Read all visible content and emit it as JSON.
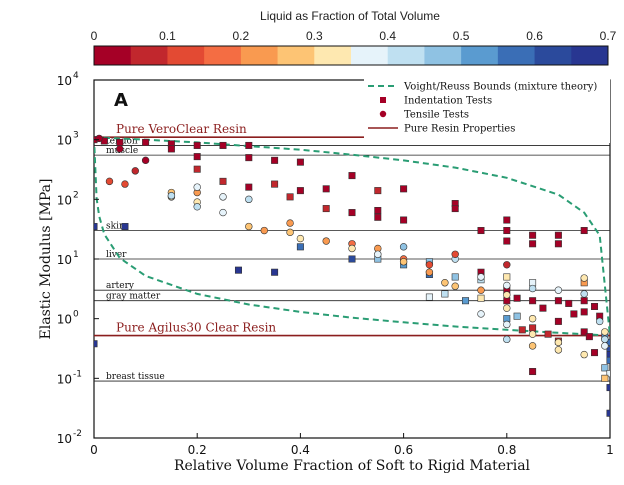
{
  "chart_data": {
    "type": "scatter",
    "panel_label": "A",
    "xlabel": "Relative Volume Fraction of Soft to Rigid Material",
    "ylabel": "Elastic Modulus [MPa]",
    "xlim": [
      0,
      1
    ],
    "ylim_log10": [
      -2,
      4
    ],
    "x_ticks": [
      "0",
      "0.2",
      "0.4",
      "0.6",
      "0.8",
      "1"
    ],
    "y_tick_bases": [
      "10",
      "10",
      "10",
      "10",
      "10",
      "10",
      "10"
    ],
    "y_tick_exps": [
      "-2",
      "-1",
      "0",
      "1",
      "2",
      "3",
      "4"
    ],
    "colorbar": {
      "title": "Liquid as Fraction of Total Volume",
      "ticks": [
        "0",
        "0.1",
        "0.2",
        "0.3",
        "0.4",
        "0.5",
        "0.6",
        "0.7"
      ],
      "colors": [
        "#a50026",
        "#c1272d",
        "#e34a33",
        "#f46d43",
        "#f99a50",
        "#fdc474",
        "#fee8b0",
        "#e6f3fa",
        "#bfe0f1",
        "#8fc2e3",
        "#5a9bd0",
        "#3a6eb6",
        "#2b4a9c",
        "#283691"
      ]
    },
    "legend": [
      {
        "label": "Voight/Reuss Bounds (mixture theory)",
        "kind": "dashed"
      },
      {
        "label": "Indentation Tests",
        "kind": "square"
      },
      {
        "label": "Tensile Tests",
        "kind": "circle"
      },
      {
        "label": "Pure Resin Properties",
        "kind": "line"
      }
    ],
    "resin_lines": [
      {
        "label": "Pure VeroClear Resin",
        "value": 1100
      },
      {
        "label": "Pure Agilus30 Clear Resin",
        "value": 0.52
      }
    ],
    "tissue_lines": [
      {
        "label": "tendon",
        "value": 800
      },
      {
        "label": "muscle",
        "value": 550
      },
      {
        "label": "skin",
        "value": 30
      },
      {
        "label": "liver",
        "value": 10
      },
      {
        "label": "artery",
        "value": 3
      },
      {
        "label": "gray matter",
        "value": 2
      },
      {
        "label": "breast tissue",
        "value": 0.09
      }
    ],
    "voigt_bound": {
      "x": [
        0,
        0.1,
        0.2,
        0.3,
        0.4,
        0.5,
        0.6,
        0.7,
        0.8,
        0.9,
        0.95,
        0.98,
        1
      ],
      "y": [
        1100,
        1000,
        900,
        780,
        680,
        560,
        450,
        340,
        230,
        120,
        60,
        25,
        0.52
      ]
    },
    "reuss_bound": {
      "x": [
        0,
        0.005,
        0.01,
        0.02,
        0.05,
        0.1,
        0.2,
        0.3,
        0.4,
        0.5,
        0.6,
        0.7,
        0.8,
        0.9,
        1
      ],
      "y": [
        1100,
        104,
        52,
        26,
        10.4,
        5.2,
        2.6,
        1.73,
        1.3,
        1.04,
        0.87,
        0.74,
        0.65,
        0.58,
        0.52
      ]
    },
    "series": [
      {
        "name": "Indentation Tests",
        "marker": "square",
        "points": [
          [
            0,
            1000,
            0
          ],
          [
            0.02,
            950,
            0
          ],
          [
            0.05,
            900,
            0
          ],
          [
            0.1,
            900,
            0.01
          ],
          [
            0.15,
            850,
            0
          ],
          [
            0.15,
            700,
            0.02
          ],
          [
            0.2,
            800,
            0
          ],
          [
            0.2,
            520,
            0.03
          ],
          [
            0.25,
            800,
            0
          ],
          [
            0.3,
            800,
            0.01
          ],
          [
            0.2,
            320,
            0.05
          ],
          [
            0.25,
            200,
            0.05
          ],
          [
            0.3,
            160,
            0.04
          ],
          [
            0.35,
            180,
            0.05
          ],
          [
            0.4,
            140,
            0.04
          ],
          [
            0.45,
            150,
            0.04
          ],
          [
            0.5,
            250,
            0.04
          ],
          [
            0.55,
            140,
            0.05
          ],
          [
            0.6,
            150,
            0.03
          ],
          [
            0.3,
            500,
            0.03
          ],
          [
            0.35,
            450,
            0.02
          ],
          [
            0.4,
            420,
            0.02
          ],
          [
            0.38,
            110,
            0.05
          ],
          [
            0.45,
            70,
            0.05
          ],
          [
            0.5,
            60,
            0.03
          ],
          [
            0.55,
            50,
            0.03
          ],
          [
            0.55,
            65,
            0.03
          ],
          [
            0.6,
            45,
            0.02
          ],
          [
            0.7,
            85,
            0.03
          ],
          [
            0.7,
            70,
            0.04
          ],
          [
            0.8,
            45,
            0.02
          ],
          [
            0.8,
            30,
            0.03
          ],
          [
            0.75,
            30,
            0.03
          ],
          [
            0.8,
            20,
            0.03
          ],
          [
            0.85,
            25,
            0.03
          ],
          [
            0.85,
            18,
            0.04
          ],
          [
            0.9,
            25,
            0.02
          ],
          [
            0.9,
            18,
            0.02
          ],
          [
            0.95,
            30,
            0.02
          ],
          [
            0.75,
            6,
            0.03
          ],
          [
            0.75,
            5,
            0.04
          ],
          [
            0.8,
            3,
            0.03
          ],
          [
            0.8,
            2,
            0.02
          ],
          [
            0.82,
            2.2,
            0.03
          ],
          [
            0.85,
            2,
            0.02
          ],
          [
            0.87,
            1.5,
            0.02
          ],
          [
            0.9,
            2,
            0.02
          ],
          [
            0.92,
            1.8,
            0.03
          ],
          [
            0.95,
            2,
            0.03
          ],
          [
            0.93,
            1.2,
            0.02
          ],
          [
            0.95,
            1.3,
            0.02
          ],
          [
            0.97,
            1.6,
            0.02
          ],
          [
            0.98,
            1.1,
            0.03
          ],
          [
            0.9,
            0.9,
            0.02
          ],
          [
            0.95,
            0.6,
            0.02
          ],
          [
            0.96,
            0.5,
            0.03
          ],
          [
            0.97,
            0.27,
            0.02
          ],
          [
            0.85,
            0.13,
            0.03
          ],
          [
            0.85,
            0.7,
            0.05
          ],
          [
            0.9,
            0.42,
            0.06
          ],
          [
            0.83,
            0.65,
            0.08
          ],
          [
            0.88,
            0.55,
            0.09
          ],
          [
            0.7,
            5,
            0.45
          ],
          [
            0.75,
            4.5,
            0.42
          ],
          [
            0.8,
            5,
            0.3
          ],
          [
            0.85,
            4,
            0.35
          ],
          [
            0.95,
            4,
            0.2
          ],
          [
            0.65,
            2.3,
            0.35
          ],
          [
            0.68,
            2.6,
            0.4
          ],
          [
            0.72,
            2,
            0.5
          ],
          [
            0.75,
            2.2,
            0.3
          ],
          [
            0.8,
            1,
            0.5
          ],
          [
            0.82,
            1.1,
            0.45
          ],
          [
            0.4,
            16,
            0.58
          ],
          [
            0.5,
            10,
            0.6
          ],
          [
            0.55,
            10,
            0.48
          ],
          [
            0.6,
            8,
            0.5
          ],
          [
            0.65,
            9,
            0.45
          ],
          [
            0.65,
            5.5,
            0.55
          ],
          [
            0.35,
            6,
            0.7
          ],
          [
            0.28,
            6.5,
            0.7
          ],
          [
            0.06,
            35,
            0.68
          ],
          [
            0,
            35,
            0.65
          ],
          [
            0,
            0.38,
            0.7
          ],
          [
            0.99,
            0.5,
            0.5
          ],
          [
            1,
            0.4,
            0.55
          ],
          [
            1,
            0.3,
            0.6
          ],
          [
            1,
            0.25,
            0.65
          ],
          [
            1,
            0.2,
            0.55
          ],
          [
            0.99,
            0.15,
            0.45
          ],
          [
            1,
            0.12,
            0.35
          ],
          [
            0.99,
            0.1,
            0.25
          ],
          [
            1,
            0.07,
            0.7
          ],
          [
            1,
            0.026,
            0.65
          ]
        ]
      },
      {
        "name": "Tensile Tests",
        "marker": "circle",
        "points": [
          [
            0.01,
            1050,
            0
          ],
          [
            0.05,
            700,
            0.03
          ],
          [
            0.08,
            300,
            0.05
          ],
          [
            0.1,
            450,
            0.02
          ],
          [
            0.03,
            200,
            0.12
          ],
          [
            0.06,
            180,
            0.14
          ],
          [
            0.15,
            130,
            0.28
          ],
          [
            0.15,
            110,
            0.33
          ],
          [
            0.2,
            130,
            0.24
          ],
          [
            0.2,
            90,
            0.3
          ],
          [
            0.25,
            60,
            0.36
          ],
          [
            0.3,
            35,
            0.28
          ],
          [
            0.33,
            30,
            0.2
          ],
          [
            0.38,
            40,
            0.22
          ],
          [
            0.38,
            28,
            0.26
          ],
          [
            0.45,
            20,
            0.2
          ],
          [
            0.5,
            18,
            0.18
          ],
          [
            0.55,
            15,
            0.22
          ],
          [
            0.6,
            10,
            0.15
          ],
          [
            0.6,
            9,
            0.25
          ],
          [
            0.65,
            6,
            0.2
          ],
          [
            0.68,
            4,
            0.25
          ],
          [
            0.7,
            3.5,
            0.28
          ],
          [
            0.75,
            3,
            0.2
          ],
          [
            0.8,
            2.5,
            0.3
          ],
          [
            0.8,
            1.5,
            0.34
          ],
          [
            0.75,
            1.2,
            0.36
          ],
          [
            0.85,
            1,
            0.3
          ],
          [
            0.8,
            0.8,
            0.38
          ],
          [
            0.85,
            0.55,
            0.32
          ],
          [
            0.8,
            0.45,
            0.4
          ],
          [
            0.85,
            0.35,
            0.28
          ],
          [
            0.9,
            0.4,
            0.3
          ],
          [
            0.9,
            0.3,
            0.34
          ],
          [
            0.95,
            0.25,
            0.32
          ],
          [
            0.2,
            160,
            0.36
          ],
          [
            0.25,
            110,
            0.38
          ],
          [
            0.3,
            100,
            0.4
          ],
          [
            0.15,
            115,
            0.42
          ],
          [
            0.2,
            75,
            0.44
          ],
          [
            0.4,
            22,
            0.34
          ],
          [
            0.5,
            15,
            0.32
          ],
          [
            0.55,
            12,
            0.36
          ],
          [
            0.6,
            16,
            0.46
          ],
          [
            0.7,
            10,
            0.4
          ],
          [
            0.75,
            5,
            0.38
          ],
          [
            0.8,
            3.6,
            0.36
          ],
          [
            0.85,
            3.2,
            0.42
          ],
          [
            0.9,
            3,
            0.38
          ],
          [
            0.95,
            2.6,
            0.4
          ],
          [
            0.7,
            12,
            0.14
          ],
          [
            0.65,
            8,
            0.1
          ],
          [
            0.8,
            8,
            0.08
          ],
          [
            0.95,
            4.8,
            0.3
          ],
          [
            0.98,
            0.9,
            0.44
          ],
          [
            0.99,
            0.6,
            0.3
          ],
          [
            0.99,
            0.35,
            0.36
          ],
          [
            0.99,
            0.45,
            0.42
          ]
        ]
      }
    ]
  }
}
